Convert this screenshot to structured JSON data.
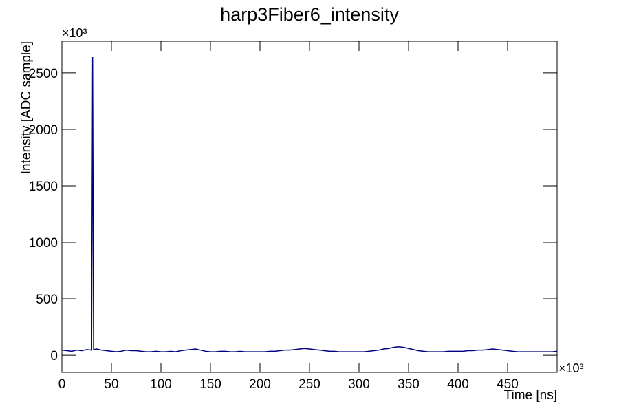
{
  "chart_data": {
    "type": "line",
    "title": "harp3Fiber6_intensity",
    "x_label": "Time [ns]",
    "y_label": "Intensity [ADC sample]",
    "x_multiplier": "×10³",
    "y_multiplier": "×10³",
    "x": [
      0,
      5,
      10,
      15,
      20,
      25,
      30,
      31,
      32,
      35,
      40,
      45,
      50,
      55,
      60,
      65,
      70,
      75,
      80,
      85,
      90,
      95,
      100,
      105,
      110,
      115,
      120,
      125,
      130,
      135,
      140,
      145,
      150,
      155,
      160,
      165,
      170,
      175,
      180,
      185,
      190,
      195,
      200,
      205,
      210,
      215,
      220,
      225,
      230,
      235,
      240,
      245,
      250,
      255,
      260,
      265,
      270,
      275,
      280,
      285,
      290,
      295,
      300,
      305,
      310,
      315,
      320,
      325,
      330,
      335,
      340,
      345,
      350,
      355,
      360,
      365,
      370,
      375,
      380,
      385,
      390,
      395,
      400,
      405,
      410,
      415,
      420,
      425,
      430,
      435,
      440,
      445,
      450,
      455,
      460,
      465,
      470,
      475,
      480,
      485,
      490,
      495,
      500
    ],
    "series": [
      {
        "color": "#000080",
        "values": [
          45,
          40,
          35,
          45,
          40,
          50,
          45,
          2640,
          50,
          55,
          45,
          40,
          35,
          30,
          35,
          45,
          40,
          40,
          35,
          30,
          30,
          35,
          30,
          30,
          35,
          30,
          40,
          45,
          50,
          55,
          45,
          35,
          30,
          30,
          35,
          35,
          30,
          30,
          35,
          30,
          30,
          30,
          30,
          30,
          35,
          35,
          40,
          45,
          45,
          50,
          55,
          60,
          55,
          50,
          45,
          40,
          35,
          35,
          30,
          30,
          30,
          30,
          30,
          30,
          35,
          40,
          45,
          55,
          60,
          70,
          75,
          70,
          60,
          50,
          40,
          35,
          30,
          30,
          30,
          30,
          35,
          35,
          35,
          35,
          40,
          40,
          45,
          45,
          50,
          55,
          50,
          45,
          40,
          35,
          30,
          30,
          30,
          30,
          30,
          30,
          30,
          30,
          35
        ]
      }
    ],
    "xlim": [
      0,
      500
    ],
    "ylim": [
      -152,
      2780
    ],
    "xticks": [
      0,
      50,
      100,
      150,
      200,
      250,
      300,
      350,
      400,
      450
    ],
    "yticks": [
      0,
      500,
      1000,
      1500,
      2000,
      2500
    ]
  }
}
